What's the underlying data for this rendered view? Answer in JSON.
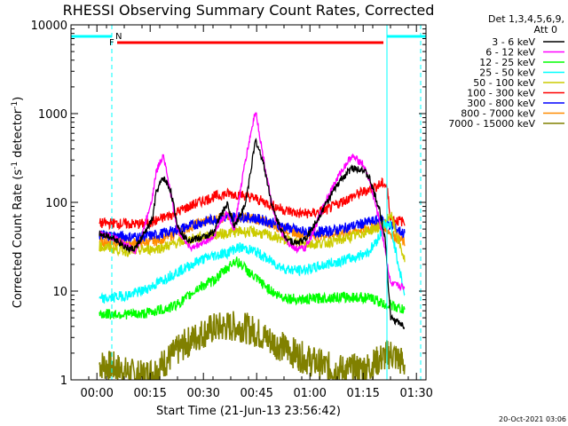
{
  "chart_data": {
    "type": "line",
    "title": "RHESSI Observing Summary Count Rates, Corrected",
    "xlabel": "Start Time (21-Jun-13 23:56:42)",
    "ylabel": "Corrected Count Rate (s⁻¹ detector⁻¹)",
    "ylabel_parts": [
      "Corrected Count Rate (s",
      "-1",
      " detector",
      "-1",
      ")"
    ],
    "yscale": "log",
    "ylim": [
      1,
      10000
    ],
    "xlim_minutes": [
      -4,
      96
    ],
    "xticks": [
      {
        "min": 3.3,
        "label": "00:00"
      },
      {
        "min": 18.3,
        "label": "00:15"
      },
      {
        "min": 33.3,
        "label": "00:30"
      },
      {
        "min": 48.3,
        "label": "00:45"
      },
      {
        "min": 63.3,
        "label": "01:00"
      },
      {
        "min": 78.3,
        "label": "01:15"
      },
      {
        "min": 93.3,
        "label": "01:30"
      }
    ],
    "yticks": [
      {
        "value": 1,
        "label": "1"
      },
      {
        "value": 10,
        "label": "10"
      },
      {
        "value": 100,
        "label": "100"
      },
      {
        "value": 1000,
        "label": "1000"
      },
      {
        "value": 10000,
        "label": "10000"
      }
    ],
    "legend_header": [
      "Det 1,3,4,5,6,9,",
      "Att 0"
    ],
    "annotations": {
      "night_marker": "N",
      "flare_marker": "F",
      "night_intervals": [
        [
          -4,
          7.5
        ],
        [
          85,
          96
        ]
      ],
      "flare_interval": [
        9,
        84
      ],
      "vertical_lines": [
        7.5,
        85,
        94.5
      ]
    },
    "series": [
      {
        "name": "3 - 6 keV",
        "color": "#000000",
        "x": [
          4,
          8,
          12,
          14,
          16,
          19,
          20,
          22,
          24,
          26,
          28,
          30,
          33,
          36,
          38,
          40,
          42,
          45,
          48,
          50,
          53,
          56,
          59,
          62,
          65,
          68,
          72,
          75,
          78,
          80,
          83,
          84.5,
          86,
          90
        ],
        "y": [
          45,
          40,
          30,
          30,
          40,
          65,
          130,
          190,
          140,
          55,
          40,
          38,
          40,
          45,
          70,
          95,
          55,
          90,
          500,
          300,
          80,
          42,
          35,
          38,
          60,
          100,
          180,
          240,
          240,
          190,
          80,
          40,
          5,
          4
        ]
      },
      {
        "name": "6 - 12 keV",
        "color": "#ff00ff",
        "x": [
          4,
          8,
          12,
          14,
          16,
          19,
          20,
          22,
          24,
          26,
          28,
          30,
          33,
          36,
          38,
          40,
          42,
          45,
          48,
          50,
          53,
          56,
          59,
          62,
          65,
          68,
          72,
          75,
          78,
          80,
          83,
          84.5,
          86,
          90
        ],
        "y": [
          45,
          40,
          32,
          28,
          42,
          120,
          220,
          350,
          130,
          50,
          38,
          30,
          35,
          40,
          60,
          75,
          50,
          280,
          1100,
          350,
          75,
          40,
          30,
          30,
          55,
          110,
          220,
          330,
          280,
          180,
          60,
          30,
          12,
          11
        ]
      },
      {
        "name": "12 - 25 keV",
        "color": "#00ff00",
        "x": [
          4,
          8,
          10,
          16,
          20,
          24,
          28,
          32,
          36,
          40,
          42,
          44,
          47,
          50,
          54,
          58,
          62,
          66,
          70,
          74,
          78,
          82,
          84,
          86,
          90
        ],
        "y": [
          5.5,
          5.5,
          5.5,
          5.5,
          6,
          6.5,
          8,
          11,
          13,
          18,
          22,
          20,
          15,
          12,
          9,
          8.2,
          8,
          8.3,
          8.5,
          8.5,
          8.5,
          8,
          7,
          7,
          6
        ]
      },
      {
        "name": "25 - 50 keV",
        "color": "#00ffff",
        "x": [
          4,
          8,
          12,
          16,
          20,
          24,
          28,
          32,
          36,
          40,
          42,
          44,
          48,
          52,
          56,
          60,
          64,
          68,
          72,
          76,
          80,
          83,
          84,
          86,
          90
        ],
        "y": [
          8,
          8.5,
          9,
          10,
          12,
          15,
          18,
          22,
          25,
          27,
          30,
          31,
          28,
          22,
          18,
          17,
          18,
          20,
          22,
          24,
          28,
          42,
          55,
          55,
          9
        ]
      },
      {
        "name": "50 - 100 keV",
        "color": "#cccc00",
        "x": [
          4,
          8,
          12,
          16,
          20,
          24,
          28,
          32,
          36,
          40,
          44,
          48,
          52,
          56,
          60,
          64,
          68,
          72,
          76,
          80,
          84,
          86,
          88,
          90
        ],
        "y": [
          32,
          30,
          28,
          29,
          30,
          33,
          37,
          40,
          43,
          45,
          47,
          46,
          42,
          38,
          35,
          34,
          35,
          38,
          42,
          48,
          55,
          75,
          40,
          22
        ]
      },
      {
        "name": "100 - 300 keV",
        "color": "#ff0000",
        "x": [
          4,
          8,
          12,
          16,
          20,
          24,
          28,
          32,
          36,
          40,
          44,
          48,
          52,
          56,
          60,
          64,
          68,
          72,
          76,
          80,
          84,
          85,
          86,
          90
        ],
        "y": [
          58,
          58,
          57,
          57,
          62,
          72,
          85,
          100,
          115,
          125,
          122,
          110,
          95,
          82,
          75,
          75,
          82,
          100,
          120,
          140,
          165,
          150,
          65,
          60
        ]
      },
      {
        "name": "300 - 800 keV",
        "color": "#0000ff",
        "x": [
          4,
          8,
          12,
          16,
          20,
          24,
          28,
          32,
          36,
          40,
          44,
          48,
          52,
          56,
          60,
          64,
          68,
          72,
          76,
          80,
          84,
          86,
          90
        ],
        "y": [
          43,
          42,
          41,
          41,
          43,
          47,
          52,
          58,
          64,
          68,
          69,
          66,
          60,
          53,
          48,
          46,
          47,
          50,
          55,
          60,
          65,
          55,
          44
        ]
      },
      {
        "name": "800 - 7000 keV",
        "color": "#ff8c00",
        "x": [
          4,
          8,
          12,
          16,
          20,
          24,
          28,
          32,
          36,
          40,
          44,
          48,
          52,
          56,
          60,
          64,
          68,
          72,
          76,
          80,
          84,
          86,
          90
        ],
        "y": [
          36,
          36,
          35,
          35,
          37,
          42,
          50,
          58,
          64,
          68,
          68,
          65,
          58,
          50,
          45,
          43,
          43,
          45,
          48,
          52,
          56,
          45,
          35
        ]
      },
      {
        "name": "7000 - 15000 keV",
        "color": "#808000",
        "x": [
          4,
          8,
          12,
          16,
          20,
          24,
          28,
          32,
          36,
          40,
          44,
          48,
          52,
          56,
          60,
          64,
          68,
          72,
          76,
          80,
          84,
          86,
          90
        ],
        "y": [
          1.5,
          1.4,
          1.2,
          1.1,
          1.3,
          1.8,
          2.5,
          3.2,
          3.8,
          4,
          4,
          3.5,
          2.8,
          2.3,
          1.9,
          1.6,
          1.4,
          1.3,
          1.3,
          1.4,
          1.8,
          2,
          1.5
        ]
      }
    ]
  },
  "footer": {
    "timestamp": "20-Oct-2021 03:06"
  }
}
